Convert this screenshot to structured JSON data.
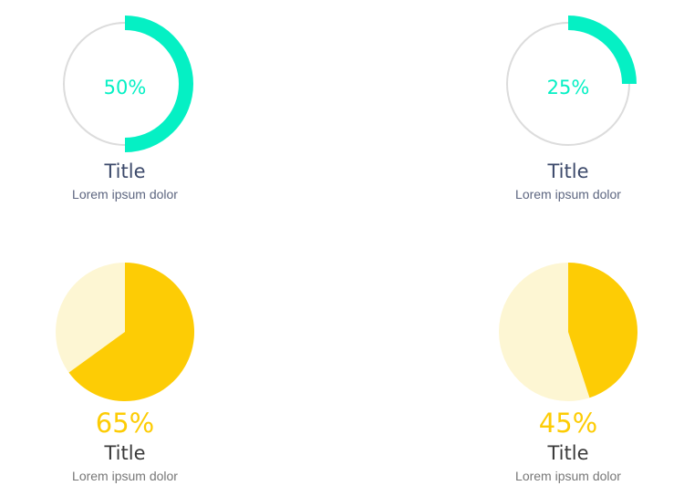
{
  "colors": {
    "ring_accent": "#05f0c4",
    "ring_track": "#dcdcdc",
    "pie_accent": "#fdcc05",
    "pie_light": "#fdf6d3"
  },
  "chart_data": [
    {
      "type": "pie",
      "style": "ring",
      "value": 50,
      "label": "50%",
      "title": "Title",
      "subtitle": "Lorem ipsum dolor"
    },
    {
      "type": "pie",
      "style": "ring",
      "value": 25,
      "label": "25%",
      "title": "Title",
      "subtitle": "Lorem ipsum dolor"
    },
    {
      "type": "pie",
      "style": "pie",
      "value": 65,
      "label": "65%",
      "title": "Title",
      "subtitle": "Lorem ipsum dolor"
    },
    {
      "type": "pie",
      "style": "pie",
      "value": 45,
      "label": "45%",
      "title": "Title",
      "subtitle": "Lorem ipsum dolor"
    }
  ]
}
